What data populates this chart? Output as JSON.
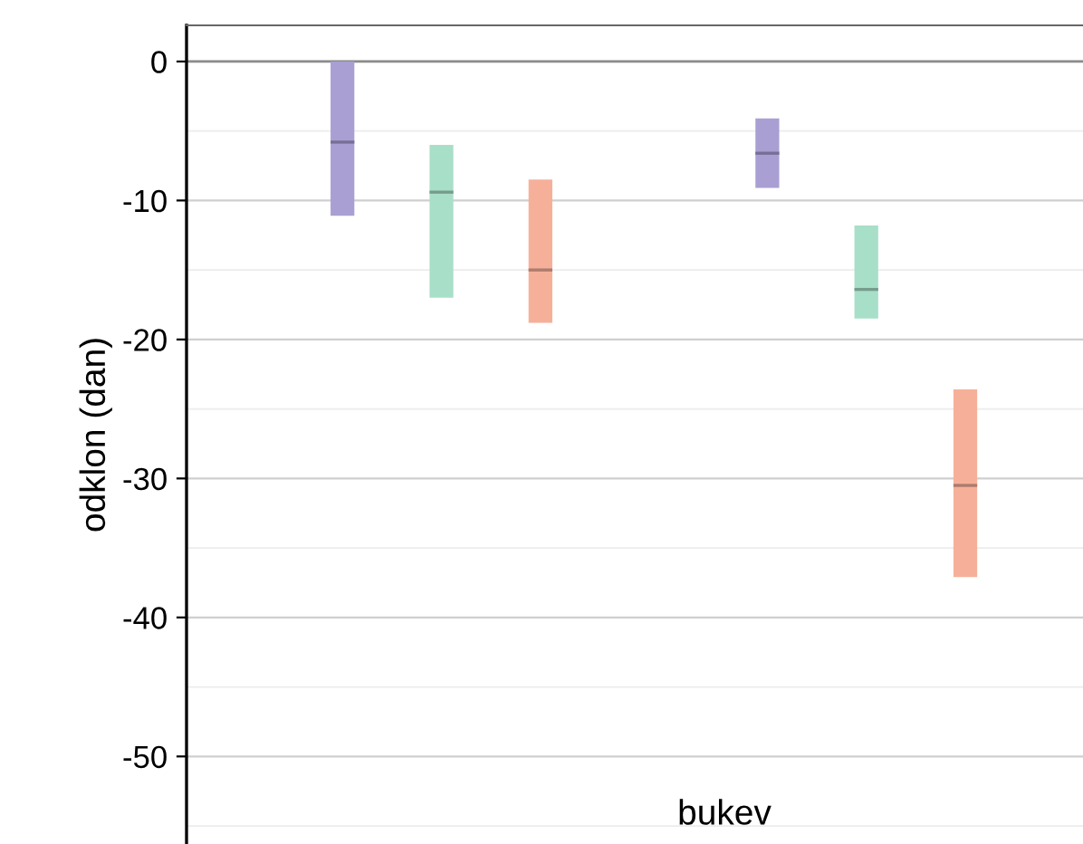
{
  "chart_data": {
    "type": "box",
    "ylabel": "odklon (dan)",
    "categories": [
      null,
      null
    ],
    "series": [
      {
        "color": "#aa9fd3",
        "boxes": [
          {
            "low": -11.1,
            "q1": -11.1,
            "median": -5.8,
            "q3": 0,
            "high": 0
          },
          {
            "low": -9.1,
            "q1": -9.1,
            "median": -6.6,
            "q3": -4.1,
            "high": -4.1
          }
        ]
      },
      {
        "color": "#a8dfc9",
        "boxes": [
          {
            "low": -17.0,
            "q1": -17.0,
            "median": -9.4,
            "q3": -6.0,
            "high": -6.0
          },
          {
            "low": -18.5,
            "q1": -18.5,
            "median": -16.4,
            "q3": -11.8,
            "high": -11.8
          }
        ]
      },
      {
        "color": "#f6b09a",
        "boxes": [
          {
            "low": -18.8,
            "q1": -18.8,
            "median": -15.0,
            "q3": -8.5,
            "high": -8.5
          },
          {
            "low": -37.1,
            "q1": -37.1,
            "median": -30.5,
            "q3": -23.6,
            "high": -23.6
          }
        ]
      }
    ],
    "ylim": [
      -56.3,
      2.6
    ],
    "yticks": [
      0,
      -10,
      -20,
      -30,
      -40,
      -50
    ],
    "grid": "y",
    "ref_lines": [
      {
        "axis": "y",
        "value": 0,
        "color": "#8c8c8c"
      }
    ],
    "annotations": [
      "bukev"
    ],
    "tick_labels": "y",
    "legend": false
  }
}
